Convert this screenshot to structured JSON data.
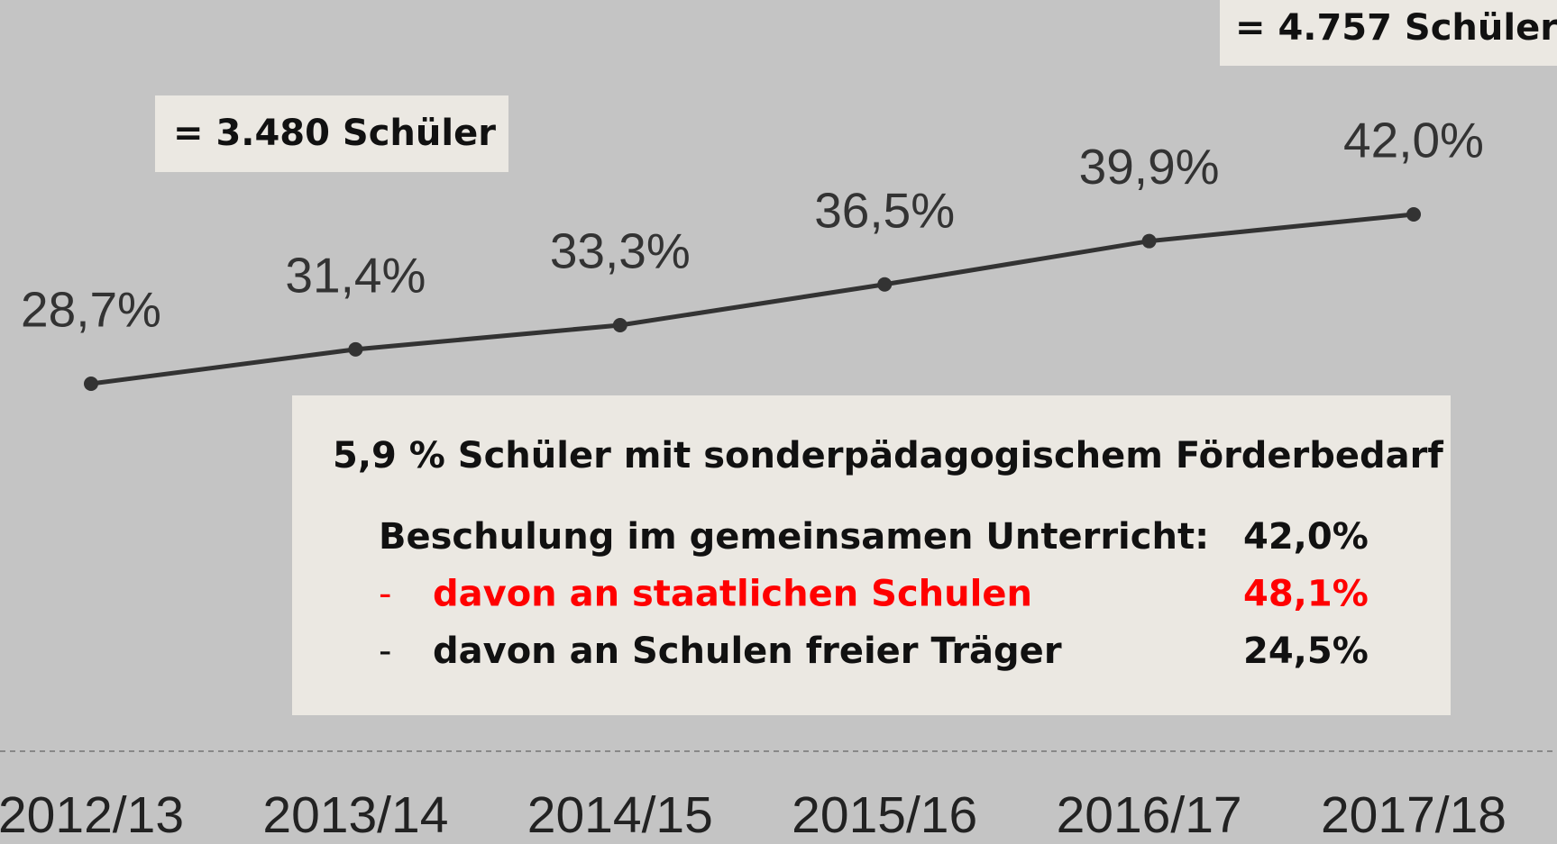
{
  "chart_data": {
    "type": "line",
    "categories": [
      "2012/13",
      "2013/14",
      "2014/15",
      "2015/16",
      "2016/17",
      "2017/18"
    ],
    "values": [
      28.7,
      31.4,
      33.3,
      36.5,
      39.9,
      42.0
    ],
    "value_labels": [
      "28,7%",
      "31,4%",
      "33,3%",
      "36,5%",
      "39,9%",
      "42,0%"
    ],
    "color": "#333333",
    "annotations": [
      "= 3.480 Schüler",
      "= 4.757 Schüler"
    ],
    "info_box": {
      "title": "5,9 % Schüler mit sonderpädagogischem Förderbedarf",
      "rows": [
        {
          "label": "Beschulung im gemeinsamen Unterricht:",
          "value": "42,0%"
        },
        {
          "bullet": "-",
          "label": "davon an staatlichen Schulen",
          "value": "48,1%",
          "color": "#ff0000"
        },
        {
          "bullet": "-",
          "label": "davon an Schulen freier Träger",
          "value": "24,5%"
        }
      ]
    }
  }
}
